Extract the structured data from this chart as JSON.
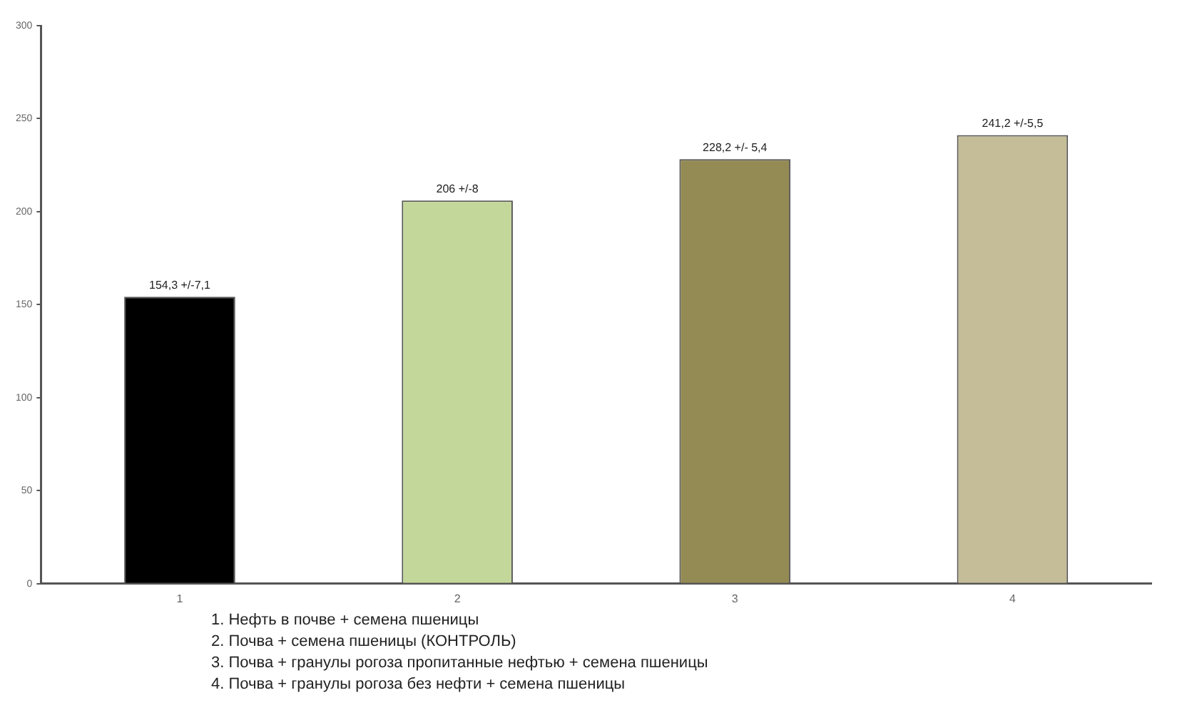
{
  "chart_data": {
    "type": "bar",
    "categories": [
      "1",
      "2",
      "3",
      "4"
    ],
    "values": [
      154.3,
      206,
      228.2,
      241.2
    ],
    "colors": [
      "#000000",
      "#c4d79b",
      "#948a54",
      "#c4bd97"
    ],
    "value_labels": [
      "154,3 +/-7,1",
      "206 +/-8",
      "228,2 +/- 5,4",
      "241,2 +/-5,5"
    ],
    "ylim": [
      0,
      300
    ],
    "yticks": [
      0,
      50,
      100,
      150,
      200,
      250,
      300
    ],
    "grid": false,
    "legend": false,
    "annotations": [
      "1.\tНефть в почве + семена пшеницы",
      "2.\tПочва + семена пшеницы (КОНТРОЛЬ)",
      "3.\tПочва + гранулы рогоза пропитанные нефтью + семена пшеницы",
      "4.\tПочва + гранулы рогоза без нефти + семена пшеницы"
    ]
  }
}
